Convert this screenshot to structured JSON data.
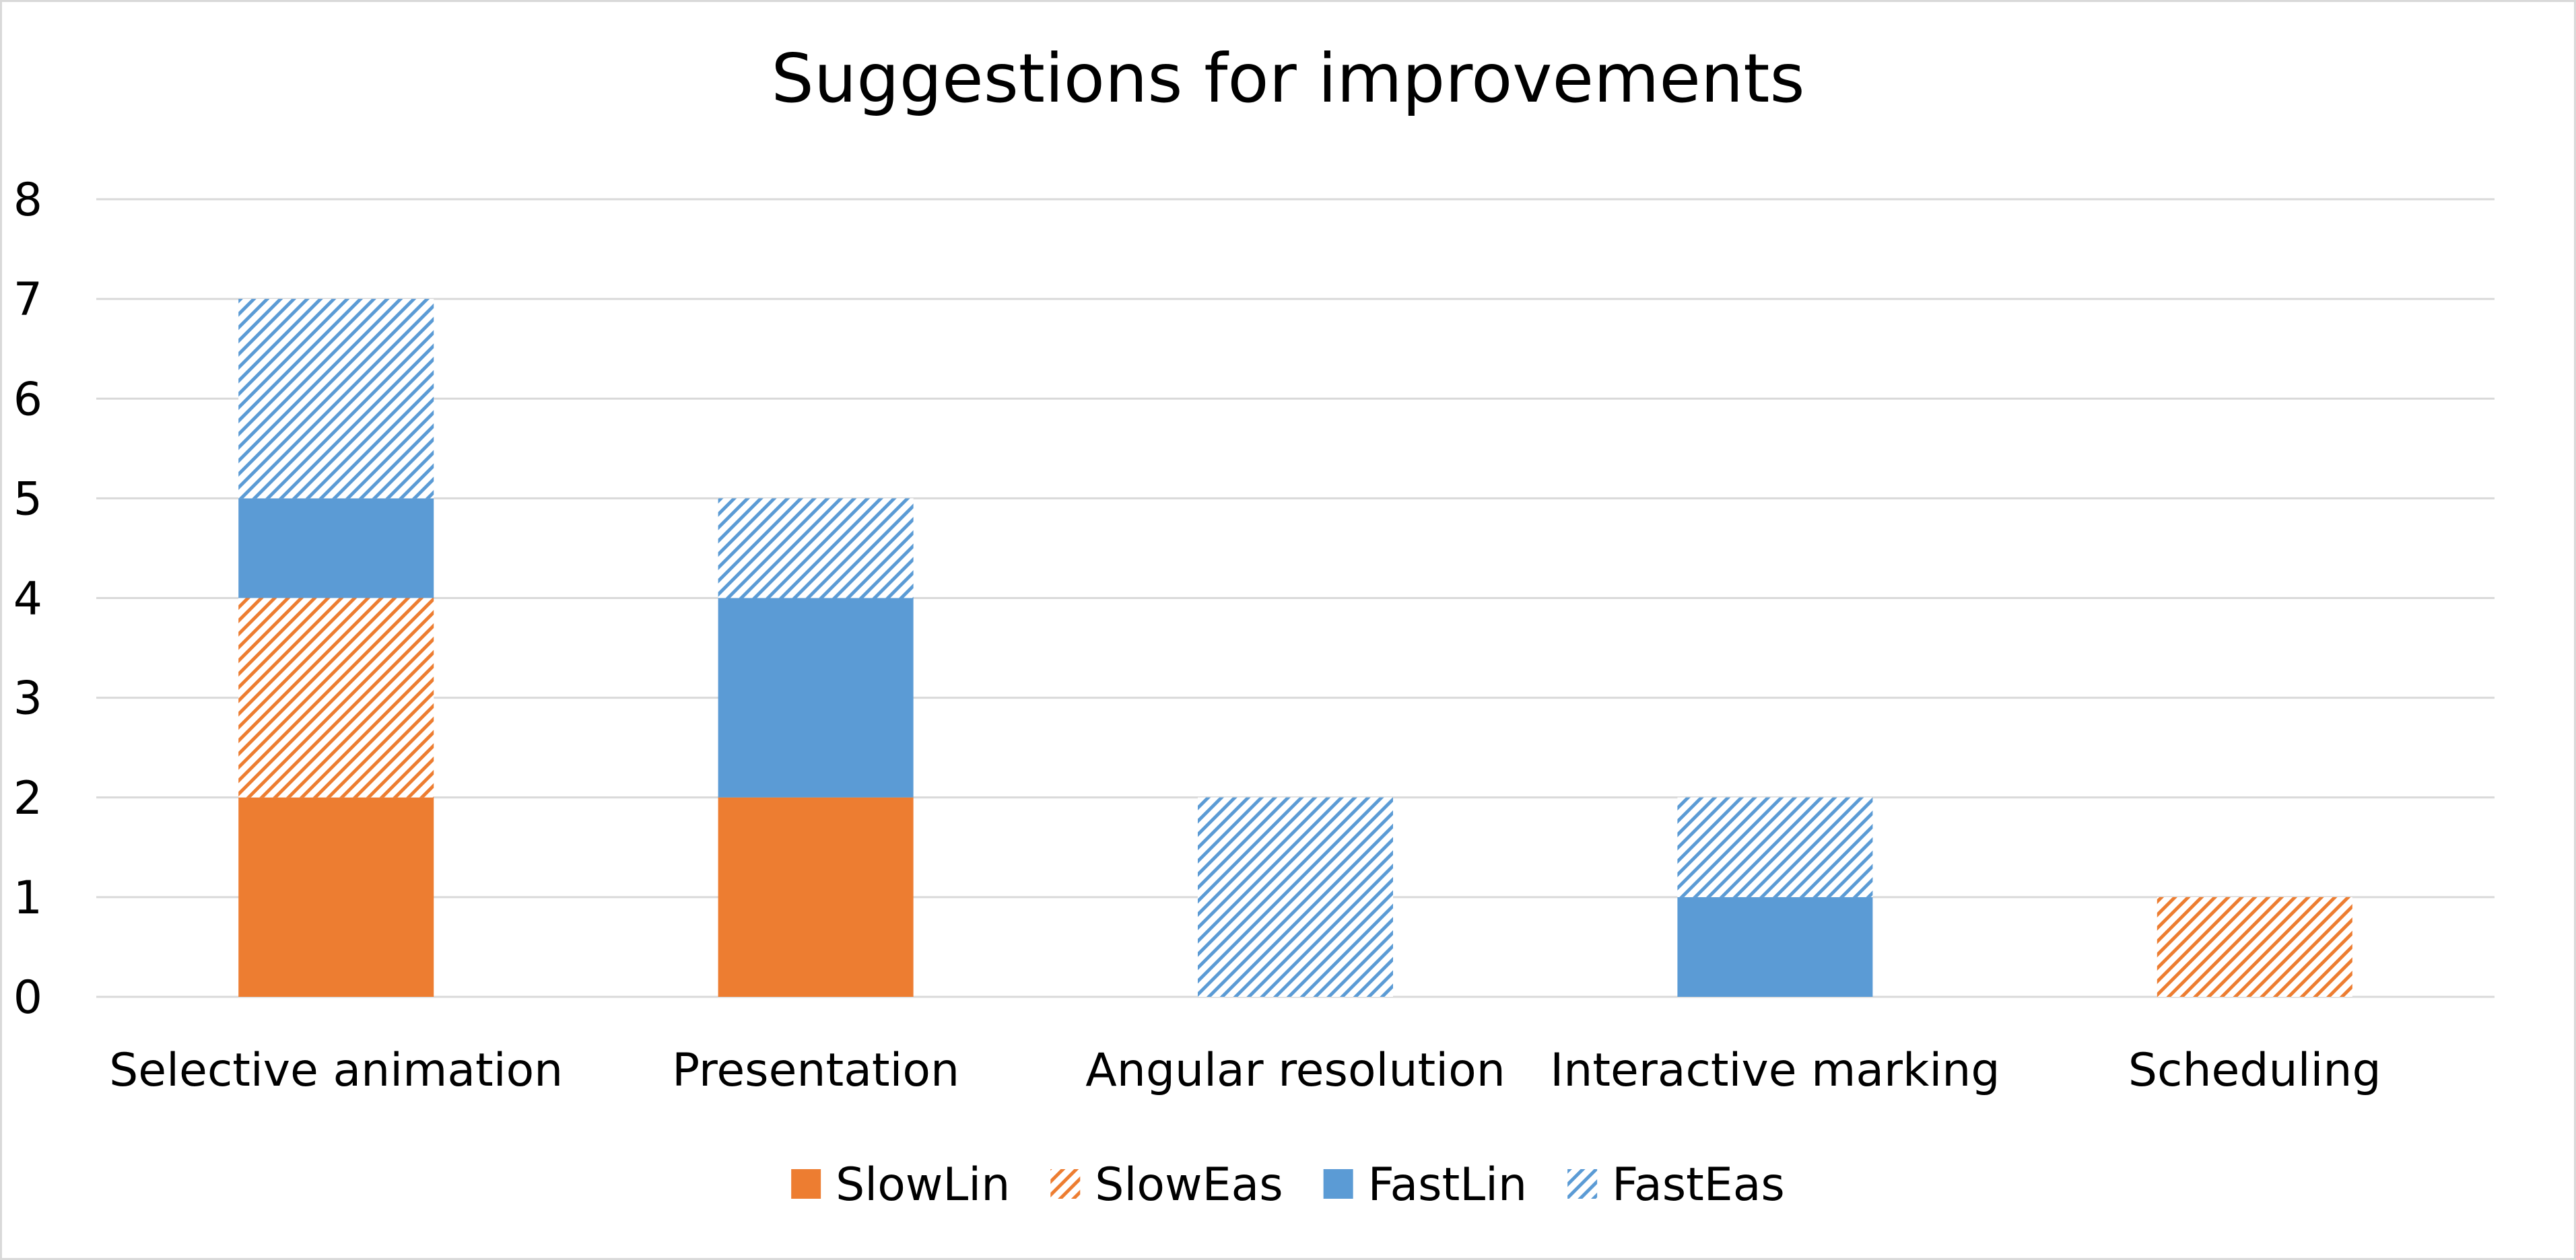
{
  "chart_data": {
    "type": "bar",
    "stacked": true,
    "title": "Suggestions for improvements",
    "xlabel": "",
    "ylabel": "",
    "ylim": [
      0,
      8
    ],
    "yticks": [
      "0",
      "1",
      "2",
      "3",
      "4",
      "5",
      "6",
      "7",
      "8"
    ],
    "grid": true,
    "legend_position": "bottom",
    "categories": [
      "Selective animation",
      "Presentation",
      "Angular resolution",
      "Interactive marking",
      "Scheduling"
    ],
    "series": [
      {
        "name": "SlowLin",
        "values": [
          2,
          2,
          0,
          0,
          0
        ],
        "color": "#ed7d31",
        "pattern": "solid"
      },
      {
        "name": "SlowEas",
        "values": [
          2,
          0,
          0,
          0,
          1
        ],
        "color": "#ed7d31",
        "pattern": "hatched"
      },
      {
        "name": "FastLin",
        "values": [
          1,
          2,
          0,
          1,
          0
        ],
        "color": "#5b9bd5",
        "pattern": "solid"
      },
      {
        "name": "FastEas",
        "values": [
          2,
          1,
          2,
          1,
          0
        ],
        "color": "#5b9bd5",
        "pattern": "hatched"
      }
    ]
  }
}
